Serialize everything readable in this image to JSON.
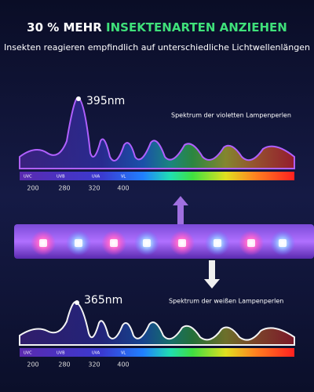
{
  "header": {
    "title_white": "30 % MEHR",
    "title_green": "INSEKTENARTEN ANZIEHEN",
    "subtitle": "Insekten reagieren empfindlich auf unterschiedliche Lichtwellenlängen"
  },
  "violet_panel": {
    "peak_label": "395nm",
    "caption": "Spektrum der violetten Lampenperlen",
    "band_labels": [
      "UVC",
      "UVB",
      "UVA",
      "VL"
    ],
    "axis_labels": [
      200,
      280,
      320,
      400
    ]
  },
  "white_panel": {
    "peak_label": "365nm",
    "caption": "Spektrum der weißen Lampenperlen",
    "band_labels": [
      "UVC",
      "UVB",
      "UVA",
      "VL"
    ],
    "axis_labels": [
      200,
      280,
      320,
      400
    ]
  }
}
